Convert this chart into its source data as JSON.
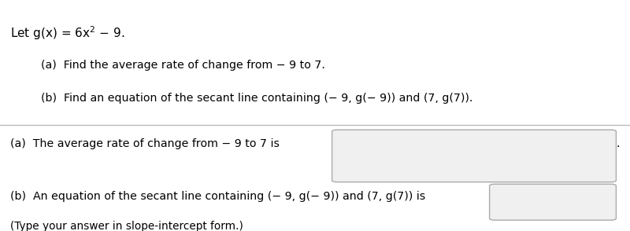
{
  "title_line": "Let g(x) = 6x$^2$ $-$ 9.",
  "sub_a": "(a)  Find the average rate of change from − 9 to 7.",
  "sub_b": "(b)  Find an equation of the secant line containing (− 9, g(− 9)) and (7, g(7)).",
  "answer_a_label": "(a)  The average rate of change from − 9 to 7 is",
  "answer_b_label": "(b)  An equation of the secant line containing (− 9, g(− 9)) and (7, g(7)) is",
  "answer_b_note": "(Type your answer in slope-intercept form.)",
  "bg_color": "#ffffff",
  "text_color": "#000000",
  "divider_color": "#bbbbbb",
  "top_bar_color": "#1a1a1a",
  "box_facecolor": "#f0f0f0",
  "box_edgecolor": "#aaaaaa",
  "font_size_title": 11,
  "font_size_body": 10.2,
  "font_size_note": 9.8
}
